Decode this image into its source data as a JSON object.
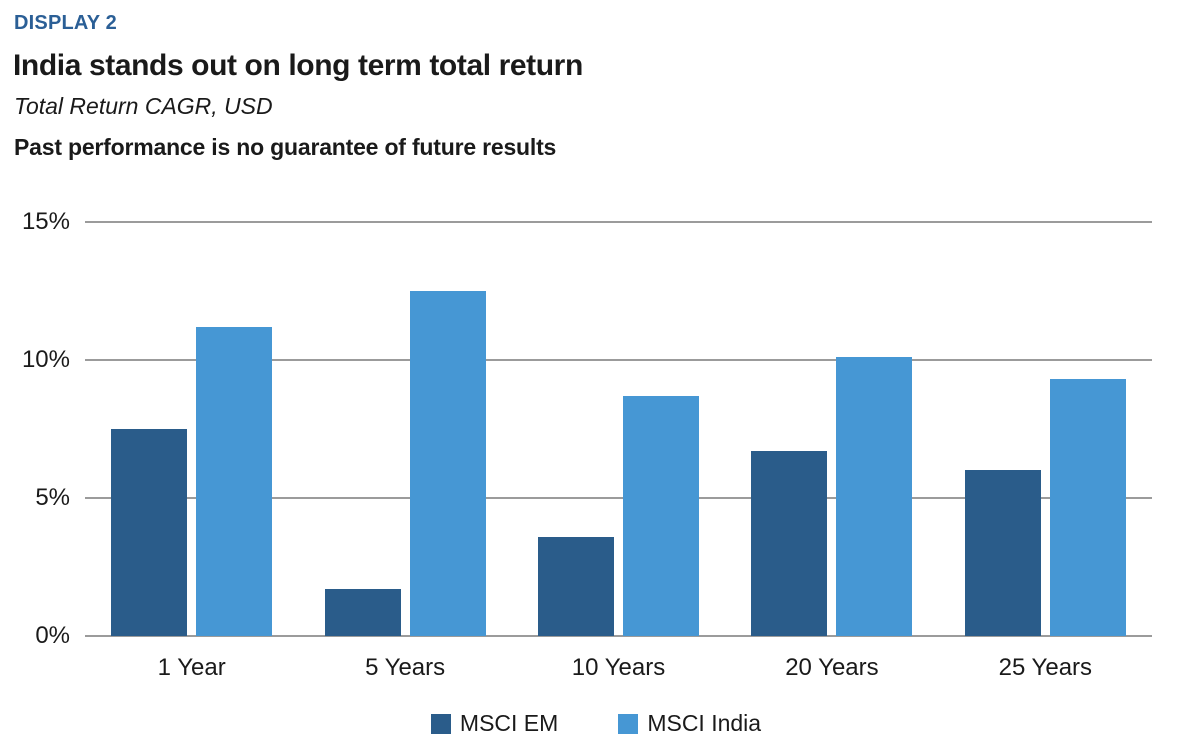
{
  "header": {
    "display_label": "DISPLAY 2",
    "title": "India stands out on long term total return",
    "subtitle": "Total Return CAGR, USD",
    "disclaimer": "Past performance is no guarantee of future results"
  },
  "colors": {
    "display_label_text": "#2B5F96",
    "body_text": "#1A1A1A",
    "gridline": "#9B9B9B",
    "msci_em": "#2A5C8A",
    "msci_india": "#4697D4"
  },
  "chart_data": {
    "type": "bar",
    "categories": [
      "1 Year",
      "5 Years",
      "10 Years",
      "20 Years",
      "25 Years"
    ],
    "series": [
      {
        "name": "MSCI EM",
        "color": "#2A5C8A",
        "values": [
          7.5,
          1.7,
          3.6,
          6.7,
          6.0
        ]
      },
      {
        "name": "MSCI India",
        "color": "#4697D4",
        "values": [
          11.2,
          12.5,
          8.7,
          10.1,
          9.3
        ]
      }
    ],
    "title": "India stands out on long term total return",
    "subtitle": "Total Return CAGR, USD",
    "annotation": "Past performance is no guarantee of future results",
    "xlabel": "",
    "ylabel": "",
    "ylim": [
      0,
      15
    ],
    "yticks": [
      0,
      5,
      10,
      15
    ],
    "ytick_suffix": "%",
    "grid": true,
    "legend_position": "bottom"
  }
}
